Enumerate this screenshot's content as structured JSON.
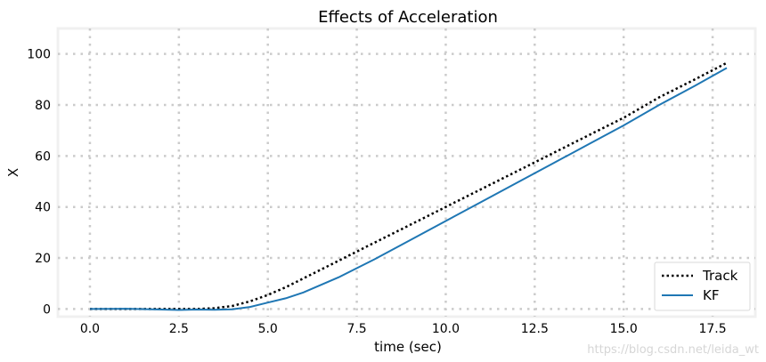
{
  "chart_data": {
    "type": "line",
    "title": "Effects of Acceleration",
    "xlabel": "time (sec)",
    "ylabel": "X",
    "xlim": [
      -0.9,
      18.7
    ],
    "ylim": [
      -3,
      110
    ],
    "xticks": [
      0.0,
      2.5,
      5.0,
      7.5,
      10.0,
      12.5,
      15.0,
      17.5
    ],
    "xtick_labels": [
      "0.0",
      "2.5",
      "5.0",
      "7.5",
      "10.0",
      "12.5",
      "15.0",
      "17.5"
    ],
    "yticks": [
      0,
      20,
      40,
      60,
      80,
      100
    ],
    "ytick_labels": [
      "0",
      "20",
      "40",
      "60",
      "80",
      "100"
    ],
    "grid": true,
    "legend_position": "bottom-right",
    "series": [
      {
        "name": "Track",
        "style": "dotted",
        "color": "#000000",
        "x": [
          0,
          1,
          2,
          3,
          3.5,
          4,
          4.5,
          5,
          5.5,
          6,
          6.5,
          7,
          8,
          9,
          10,
          11,
          12,
          13,
          14,
          15,
          16,
          17,
          17.9
        ],
        "y": [
          0,
          0,
          0,
          0,
          0.3,
          1.2,
          3,
          5.5,
          8.5,
          12,
          15.5,
          19,
          26,
          33,
          40,
          47,
          54,
          61,
          68,
          75,
          83,
          90,
          96.5
        ]
      },
      {
        "name": "KF",
        "style": "solid",
        "color": "#1f77b4",
        "x": [
          0,
          1,
          2,
          2.5,
          3,
          3.5,
          4,
          4.5,
          5,
          5.5,
          6,
          6.5,
          7,
          7.5,
          8,
          9,
          10,
          11,
          12,
          13,
          14,
          15,
          16,
          17,
          17.9
        ],
        "y": [
          0,
          0.1,
          -0.2,
          -0.4,
          -0.2,
          -0.3,
          -0.1,
          0.8,
          2.5,
          4.2,
          6.5,
          9.5,
          12.5,
          16,
          19.5,
          27,
          34.5,
          42,
          49.5,
          57,
          64.5,
          72,
          80,
          87.5,
          94.5
        ]
      }
    ]
  },
  "watermark": "https://blog.csdn.net/leida_wt"
}
